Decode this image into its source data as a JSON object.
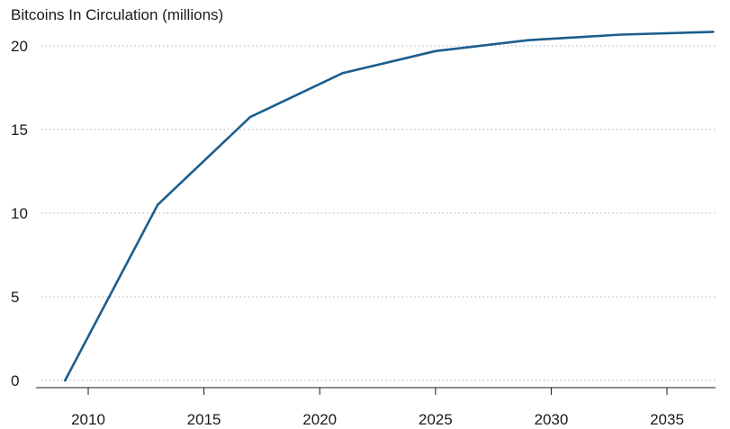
{
  "chart_data": {
    "type": "line",
    "title": "Bitcoins In Circulation (millions)",
    "xlabel": "",
    "ylabel": "",
    "x": [
      2009,
      2013,
      2017,
      2021,
      2025,
      2029,
      2033,
      2037
    ],
    "series": [
      {
        "values": [
          0,
          10.5,
          15.75,
          18.375,
          19.69,
          20.34,
          20.67,
          20.84
        ]
      }
    ],
    "xlim": [
      2008,
      2037
    ],
    "ylim": [
      0,
      20
    ],
    "xticks": [
      2010,
      2015,
      2020,
      2025,
      2030,
      2035
    ],
    "yticks": [
      0,
      5,
      10,
      15,
      20
    ],
    "grid": "horizontal-dotted",
    "colors": {
      "line": "#1b5e8e",
      "grid": "#b3b3b3",
      "axis": "#1a1a1a"
    }
  }
}
